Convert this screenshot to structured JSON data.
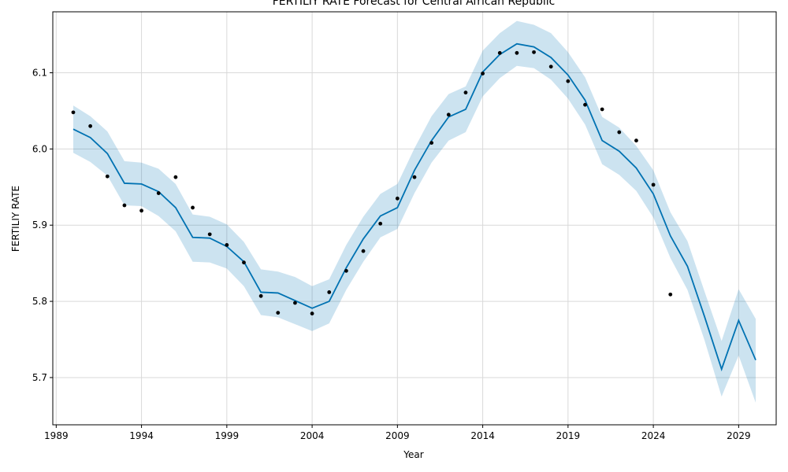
{
  "chart_data": {
    "type": "line",
    "title": "FERTILIY RATE Forecast for Central African Republic",
    "xlabel": "Year",
    "ylabel": "FERTILIY RATE",
    "xlim": [
      1988.8,
      2031.2
    ],
    "ylim": [
      5.638,
      6.18
    ],
    "x_ticks": [
      1989,
      1994,
      1999,
      2004,
      2009,
      2014,
      2019,
      2024,
      2029
    ],
    "y_ticks": [
      5.7,
      5.8,
      5.9,
      6.0,
      6.1
    ],
    "y_tick_labels": [
      "5.7",
      "5.8",
      "5.9",
      "6.0",
      "6.1"
    ],
    "grid": true,
    "colors": {
      "forecast_line": "#0072b2",
      "interval_fill": "#0072b2",
      "observed_point": "#000000",
      "grid": "#d9d9d9"
    },
    "series": [
      {
        "kind": "observed_points",
        "x": [
          1990,
          1991,
          1992,
          1993,
          1994,
          1995,
          1996,
          1997,
          1998,
          1999,
          2000,
          2001,
          2002,
          2003,
          2004,
          2005,
          2006,
          2007,
          2008,
          2009,
          2010,
          2011,
          2012,
          2013,
          2014,
          2015,
          2016,
          2017,
          2018,
          2019,
          2020,
          2021,
          2022,
          2023,
          2024,
          2025
        ],
        "y": [
          6.048,
          6.03,
          5.964,
          5.926,
          5.919,
          5.942,
          5.963,
          5.923,
          5.888,
          5.874,
          5.851,
          5.807,
          5.785,
          5.798,
          5.784,
          5.812,
          5.84,
          5.866,
          5.902,
          5.935,
          5.963,
          6.008,
          6.045,
          6.074,
          6.099,
          6.126,
          6.126,
          6.127,
          6.108,
          6.089,
          6.058,
          6.052,
          6.022,
          6.011,
          5.953,
          5.809
        ]
      },
      {
        "kind": "forecast_line",
        "x": [
          1990,
          1991,
          1992,
          1993,
          1994,
          1995,
          1996,
          1997,
          1998,
          1999,
          2000,
          2001,
          2002,
          2003,
          2004,
          2005,
          2006,
          2007,
          2008,
          2009,
          2010,
          2011,
          2012,
          2013,
          2014,
          2015,
          2016,
          2017,
          2018,
          2019,
          2020,
          2021,
          2022,
          2023,
          2024,
          2025,
          2026,
          2027,
          2028,
          2029,
          2030
        ],
        "y": [
          6.026,
          6.015,
          5.994,
          5.955,
          5.954,
          5.944,
          5.923,
          5.884,
          5.883,
          5.872,
          5.852,
          5.812,
          5.811,
          5.801,
          5.791,
          5.8,
          5.844,
          5.882,
          5.912,
          5.923,
          5.972,
          6.011,
          6.042,
          6.052,
          6.101,
          6.124,
          6.138,
          6.134,
          6.12,
          6.097,
          6.064,
          6.011,
          5.997,
          5.975,
          5.941,
          5.886,
          5.846,
          5.78,
          5.711,
          5.775,
          5.723
        ]
      },
      {
        "kind": "uncertainty_interval",
        "x": [
          1990,
          1991,
          1992,
          1993,
          1994,
          1995,
          1996,
          1997,
          1998,
          1999,
          2000,
          2001,
          2002,
          2003,
          2004,
          2005,
          2006,
          2007,
          2008,
          2009,
          2010,
          2011,
          2012,
          2013,
          2014,
          2015,
          2016,
          2017,
          2018,
          2019,
          2020,
          2021,
          2022,
          2023,
          2024,
          2025,
          2026,
          2027,
          2028,
          2029,
          2030
        ],
        "upper": [
          6.057,
          6.043,
          6.023,
          5.984,
          5.982,
          5.974,
          5.954,
          5.914,
          5.911,
          5.901,
          5.878,
          5.842,
          5.839,
          5.832,
          5.82,
          5.829,
          5.874,
          5.911,
          5.941,
          5.954,
          6.001,
          6.043,
          6.072,
          6.082,
          6.129,
          6.152,
          6.168,
          6.163,
          6.152,
          6.127,
          6.094,
          6.042,
          6.028,
          6.004,
          5.972,
          5.917,
          5.879,
          5.813,
          5.748,
          5.816,
          5.777
        ],
        "lower": [
          5.995,
          5.983,
          5.965,
          5.926,
          5.925,
          5.912,
          5.892,
          5.852,
          5.851,
          5.843,
          5.82,
          5.782,
          5.779,
          5.77,
          5.761,
          5.771,
          5.815,
          5.852,
          5.884,
          5.895,
          5.942,
          5.982,
          6.011,
          6.022,
          6.069,
          6.093,
          6.109,
          6.106,
          6.091,
          6.066,
          6.032,
          5.98,
          5.966,
          5.945,
          5.91,
          5.857,
          5.815,
          5.749,
          5.675,
          5.729,
          5.667
        ]
      }
    ]
  }
}
